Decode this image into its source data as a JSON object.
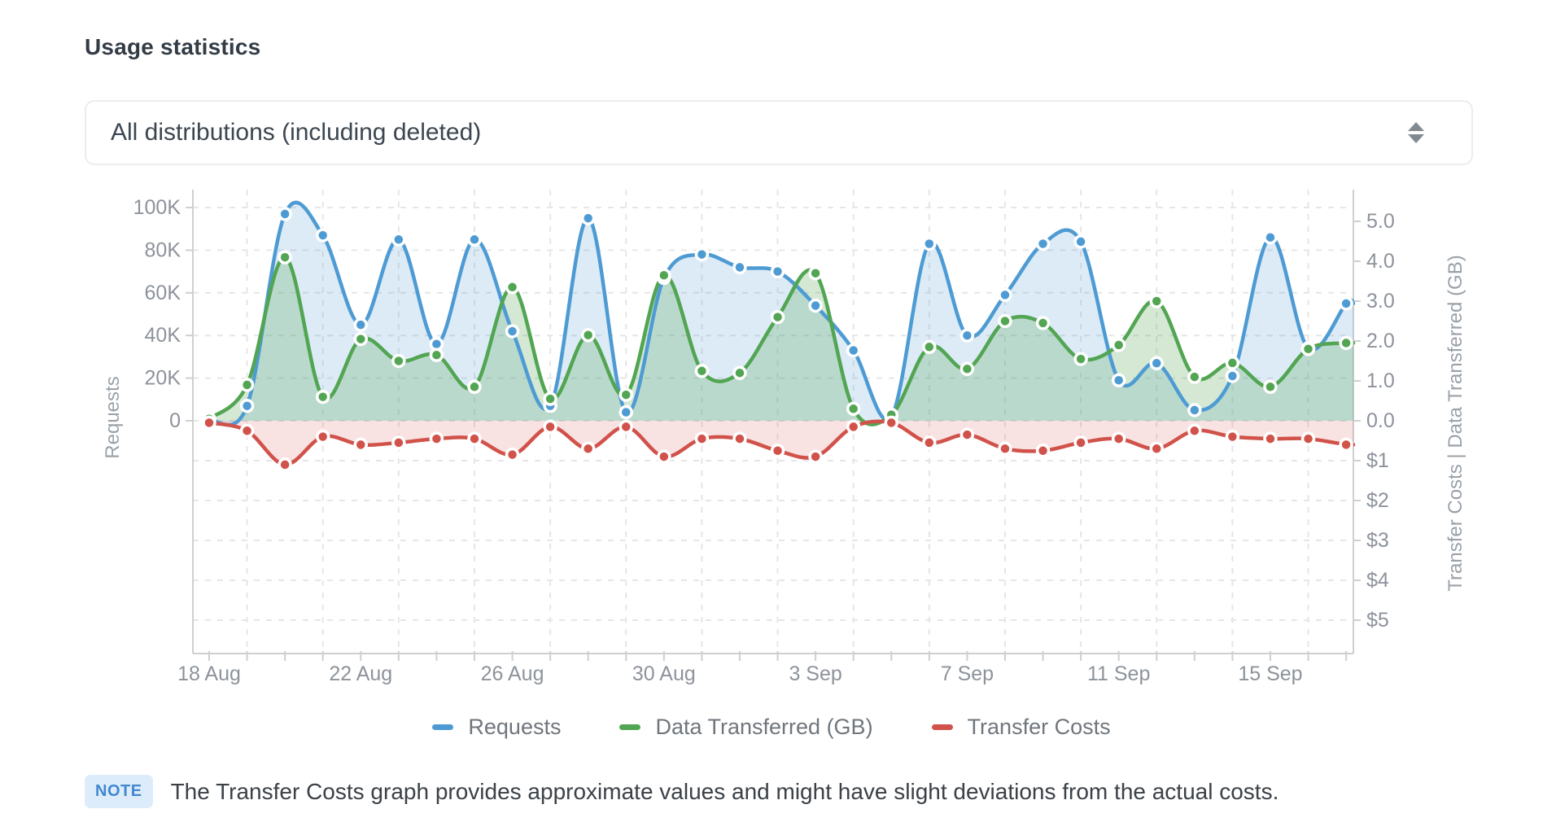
{
  "title": "Usage statistics",
  "distribution_filter": {
    "selected": "All distributions (including deleted)"
  },
  "note": {
    "badge": "NOTE",
    "text": "The Transfer Costs graph provides approximate values and might have slight deviations from the actual costs."
  },
  "ui_colors": {
    "note_badge_bg": "#ddecfb",
    "note_badge_text": "#4288ce",
    "axis_text": "#8d939b",
    "grid_line": "#e6e6e6",
    "axis_line": "#cfcfcf"
  },
  "chart_data": {
    "type": "line",
    "x": [
      "18 Aug",
      "19 Aug",
      "20 Aug",
      "21 Aug",
      "22 Aug",
      "23 Aug",
      "24 Aug",
      "25 Aug",
      "26 Aug",
      "27 Aug",
      "28 Aug",
      "29 Aug",
      "30 Aug",
      "31 Aug",
      "1 Sep",
      "2 Sep",
      "3 Sep",
      "4 Sep",
      "5 Sep",
      "6 Sep",
      "7 Sep",
      "8 Sep",
      "9 Sep",
      "10 Sep",
      "11 Sep",
      "12 Sep",
      "13 Sep",
      "14 Sep",
      "15 Sep",
      "16 Sep",
      "17 Sep"
    ],
    "x_axis_labels_shown": [
      "18 Aug",
      "22 Aug",
      "26 Aug",
      "30 Aug",
      "3 Sep",
      "7 Sep",
      "11 Sep",
      "15 Sep"
    ],
    "x_label_every_n_days": 4,
    "series": [
      {
        "name": "Requests",
        "axis": "left",
        "color": "#4e9bd4",
        "fill": "rgba(78,155,212,0.20)",
        "values": [
          500,
          7000,
          97000,
          87000,
          45000,
          85000,
          36000,
          85000,
          42000,
          7000,
          95000,
          4000,
          67000,
          78000,
          72000,
          70000,
          54000,
          33000,
          2000,
          83000,
          40000,
          59000,
          83000,
          84000,
          19000,
          27000,
          5000,
          21000,
          86000,
          34000,
          55000
        ]
      },
      {
        "name": "Data Transferred (GB)",
        "axis": "right_gb",
        "color": "#52a552",
        "fill": "rgba(82,165,82,0.25)",
        "values": [
          0.05,
          0.9,
          4.1,
          0.6,
          2.05,
          1.5,
          1.65,
          0.85,
          3.35,
          0.55,
          2.15,
          0.65,
          3.65,
          1.25,
          1.2,
          2.6,
          3.7,
          0.3,
          0.15,
          1.85,
          1.3,
          2.5,
          2.45,
          1.55,
          1.9,
          3.0,
          1.1,
          1.45,
          0.85,
          1.8,
          1.95
        ]
      },
      {
        "name": "Transfer Costs",
        "axis": "right_usd_below_zero",
        "color": "#d1524a",
        "fill": "rgba(209,82,74,0.16)",
        "values": [
          0.05,
          0.25,
          1.1,
          0.4,
          0.6,
          0.55,
          0.45,
          0.45,
          0.85,
          0.15,
          0.7,
          0.15,
          0.9,
          0.45,
          0.45,
          0.75,
          0.9,
          0.15,
          0.05,
          0.55,
          0.35,
          0.7,
          0.75,
          0.55,
          0.45,
          0.7,
          0.25,
          0.4,
          0.45,
          0.45,
          0.6
        ]
      }
    ],
    "left_axis": {
      "title": "Requests",
      "ticks": [
        "0",
        "20K",
        "40K",
        "60K",
        "80K",
        "100K"
      ],
      "tick_values": [
        0,
        20000,
        40000,
        60000,
        80000,
        100000
      ]
    },
    "right_axis": {
      "title": "Transfer Costs | Data Transferred (GB)",
      "gb_ticks": [
        "0.0",
        "1.0",
        "2.0",
        "3.0",
        "4.0",
        "5.0"
      ],
      "gb_tick_values": [
        0,
        1,
        2,
        3,
        4,
        5
      ],
      "usd_ticks": [
        "$1",
        "$2",
        "$3",
        "$4",
        "$5"
      ],
      "usd_tick_values": [
        1,
        2,
        3,
        4,
        5
      ]
    },
    "grid": true,
    "legend_position": "bottom"
  }
}
